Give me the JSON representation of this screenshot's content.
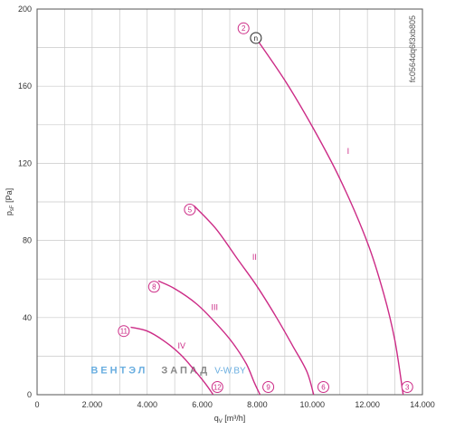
{
  "chart_data": {
    "type": "line",
    "xlabel": "q",
    "xlabel_sub": "V",
    "xlabel_unit": "[m³/h]",
    "ylabel": "p",
    "ylabel_sub": "sF",
    "ylabel_unit": "[Pa]",
    "xlim": [
      0,
      14000
    ],
    "ylim": [
      0,
      200
    ],
    "x_ticks": [
      0,
      2000,
      4000,
      6000,
      8000,
      10000,
      12000,
      14000
    ],
    "x_tick_labels": [
      "0",
      "2.000",
      "4.000",
      "6.000",
      "8.000",
      "10.000",
      "12.000",
      "14.000"
    ],
    "y_ticks": [
      0,
      40,
      80,
      120,
      160,
      200
    ],
    "y_tick_labels": [
      "0",
      "40",
      "80",
      "120",
      "160",
      "200"
    ],
    "x_minor_step": 1000,
    "y_minor_step": 20,
    "grid": true,
    "curve_color": "#cc2b86",
    "series": [
      {
        "name": "I",
        "points": [
          [
            7950,
            185
          ],
          [
            9000,
            163
          ],
          [
            10000,
            139
          ],
          [
            11000,
            112
          ],
          [
            12000,
            79
          ],
          [
            12600,
            52
          ],
          [
            13000,
            28
          ],
          [
            13300,
            0
          ]
        ]
      },
      {
        "name": "II",
        "points": [
          [
            5700,
            98
          ],
          [
            6500,
            86
          ],
          [
            7300,
            70
          ],
          [
            8000,
            56
          ],
          [
            8700,
            40
          ],
          [
            9300,
            25
          ],
          [
            9800,
            12
          ],
          [
            10050,
            0
          ]
        ]
      },
      {
        "name": "III",
        "points": [
          [
            4400,
            59
          ],
          [
            5000,
            55
          ],
          [
            5800,
            47
          ],
          [
            6500,
            37
          ],
          [
            7100,
            27
          ],
          [
            7600,
            16
          ],
          [
            7900,
            6
          ],
          [
            8100,
            0
          ]
        ]
      },
      {
        "name": "IV",
        "points": [
          [
            3400,
            35
          ],
          [
            4000,
            33
          ],
          [
            4600,
            28
          ],
          [
            5200,
            21
          ],
          [
            5700,
            13
          ],
          [
            6100,
            6
          ],
          [
            6400,
            0
          ]
        ]
      }
    ],
    "roman_labels": [
      {
        "text": "I",
        "x": 11300,
        "y": 125
      },
      {
        "text": "II",
        "x": 7900,
        "y": 70
      },
      {
        "text": "III",
        "x": 6450,
        "y": 44
      },
      {
        "text": "IV",
        "x": 5250,
        "y": 24
      }
    ],
    "markers": [
      {
        "text": "2",
        "x": 7500,
        "y": 190,
        "style": "pink"
      },
      {
        "text": "n",
        "x": 7950,
        "y": 185,
        "style": "black"
      },
      {
        "text": "3",
        "x": 13450,
        "y": 4,
        "style": "pink"
      },
      {
        "text": "5",
        "x": 5550,
        "y": 96,
        "style": "pink"
      },
      {
        "text": "6",
        "x": 10400,
        "y": 4,
        "style": "pink"
      },
      {
        "text": "8",
        "x": 4250,
        "y": 56,
        "style": "pink"
      },
      {
        "text": "9",
        "x": 8400,
        "y": 4,
        "style": "pink"
      },
      {
        "text": "11",
        "x": 3150,
        "y": 33,
        "style": "pink"
      },
      {
        "text": "12",
        "x": 6550,
        "y": 4,
        "style": "pink"
      }
    ],
    "code": "fc0564dq6f3xb805"
  },
  "watermark": {
    "part1": "ВЕНТЭЛ",
    "part2": "ЗАПАД",
    "part3": "V-W.BY",
    "color1": "#6aaee0",
    "color2": "#888888"
  }
}
